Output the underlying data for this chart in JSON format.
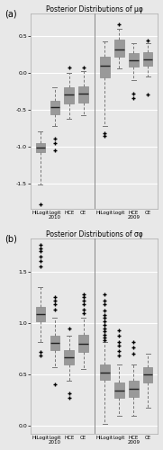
{
  "title_a": "Posterior Distributions of μφ",
  "title_b": "Posterior Distributions of σφ",
  "panel_a_label": "(a)",
  "panel_b_label": "(b)",
  "xlabels_2010": [
    "HiLogit",
    "Logit\n2010",
    "HCE",
    "CE"
  ],
  "xlabels_2009": [
    "HiLogit",
    "Logit",
    "HCE\n2009",
    "CE"
  ],
  "background_color": "#e8e8e8",
  "box_facecolor": "#f0f0f0",
  "box_edgecolor": "#999999",
  "median_color": "#222222",
  "whisker_color": "#777777",
  "flier_color": "#444444",
  "grid_color": "#ffffff",
  "divider_color": "#888888",
  "panel_a": {
    "ylim": [
      -1.85,
      0.8
    ],
    "yticks": [
      0.5,
      0.0,
      -0.5,
      -1.0,
      -1.5
    ],
    "yticklabels": [
      "0.5",
      "0.0",
      "-0.5",
      "-1.0",
      "-1.5"
    ],
    "boxes_2010": [
      {
        "q1": -1.08,
        "median": -1.02,
        "q3": -0.95,
        "whislo": -1.52,
        "whishi": -0.8,
        "fliers": [
          -1.78
        ]
      },
      {
        "q1": -0.56,
        "median": -0.47,
        "q3": -0.38,
        "whislo": -0.72,
        "whishi": -0.2,
        "fliers": [
          -0.9,
          -0.95,
          -1.05
        ]
      },
      {
        "q1": -0.42,
        "median": -0.3,
        "q3": -0.2,
        "whislo": -0.62,
        "whishi": 0.0,
        "fliers": [
          0.07
        ]
      },
      {
        "q1": -0.4,
        "median": -0.28,
        "q3": -0.18,
        "whislo": -0.58,
        "whishi": 0.02,
        "fliers": [
          0.07
        ]
      }
    ],
    "boxes_2009": [
      {
        "q1": -0.06,
        "median": 0.1,
        "q3": 0.22,
        "whislo": -0.72,
        "whishi": 0.43,
        "fliers": [
          -0.82,
          -0.86
        ]
      },
      {
        "q1": 0.22,
        "median": 0.32,
        "q3": 0.45,
        "whislo": 0.06,
        "whishi": 0.6,
        "fliers": [
          0.66
        ]
      },
      {
        "q1": 0.08,
        "median": 0.17,
        "q3": 0.27,
        "whislo": -0.1,
        "whishi": 0.4,
        "fliers": [
          -0.28,
          -0.34
        ]
      },
      {
        "q1": 0.1,
        "median": 0.18,
        "q3": 0.28,
        "whislo": -0.05,
        "whishi": 0.4,
        "fliers": [
          0.44,
          -0.3
        ]
      }
    ]
  },
  "panel_b": {
    "ylim": [
      -0.08,
      1.82
    ],
    "yticks": [
      0.0,
      0.5,
      1.0,
      1.5
    ],
    "yticklabels": [
      "0.0",
      "0.5",
      "1.0",
      "1.5"
    ],
    "boxes_2010": [
      {
        "q1": 1.02,
        "median": 1.09,
        "q3": 1.16,
        "whislo": 0.82,
        "whishi": 1.35,
        "fliers": [
          1.55,
          1.6,
          1.65,
          1.7,
          1.73,
          1.76,
          0.68,
          0.72
        ]
      },
      {
        "q1": 0.74,
        "median": 0.81,
        "q3": 0.88,
        "whislo": 0.57,
        "whishi": 1.05,
        "fliers": [
          1.13,
          1.18,
          1.22,
          1.25,
          0.4
        ]
      },
      {
        "q1": 0.6,
        "median": 0.67,
        "q3": 0.74,
        "whislo": 0.44,
        "whishi": 0.88,
        "fliers": [
          0.32,
          0.27,
          0.95
        ]
      },
      {
        "q1": 0.72,
        "median": 0.8,
        "q3": 0.89,
        "whislo": 0.55,
        "whishi": 1.05,
        "fliers": [
          1.13,
          1.18,
          1.22,
          1.25,
          1.28,
          1.1
        ]
      }
    ],
    "boxes_2009": [
      {
        "q1": 0.45,
        "median": 0.52,
        "q3": 0.6,
        "whislo": 0.02,
        "whishi": 0.82,
        "fliers": [
          1.28,
          1.22,
          1.18,
          1.12,
          1.08,
          1.05,
          1.02,
          0.98,
          0.95,
          0.92,
          0.89,
          0.86,
          0.83
        ]
      },
      {
        "q1": 0.27,
        "median": 0.34,
        "q3": 0.42,
        "whislo": 0.1,
        "whishi": 0.6,
        "fliers": [
          0.68,
          0.73,
          0.78,
          0.82,
          0.88,
          0.93
        ]
      },
      {
        "q1": 0.28,
        "median": 0.36,
        "q3": 0.44,
        "whislo": 0.1,
        "whishi": 0.6,
        "fliers": [
          0.7,
          0.76,
          0.82
        ]
      },
      {
        "q1": 0.42,
        "median": 0.5,
        "q3": 0.57,
        "whislo": 0.18,
        "whishi": 0.7,
        "fliers": []
      }
    ]
  }
}
